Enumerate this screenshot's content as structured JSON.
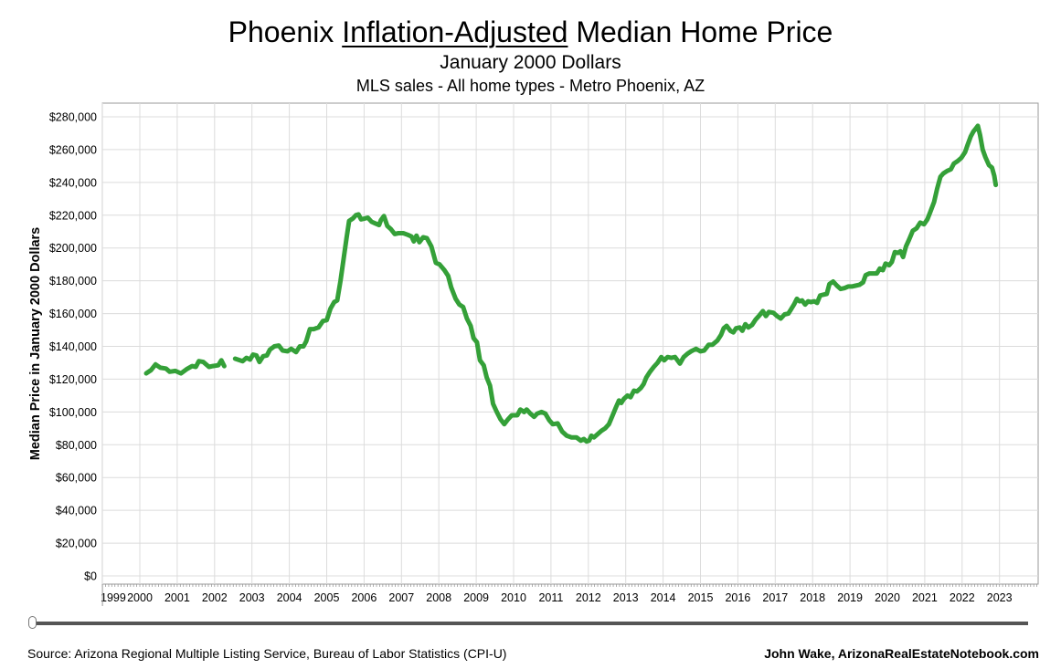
{
  "title_prefix": "Phoenix ",
  "title_underlined": "Inflation-Adjusted",
  "title_suffix": " Median Home Price",
  "subtitle": "January 2000 Dollars",
  "subtitle2": "MLS sales - All home types - Metro Phoenix, AZ",
  "footer": {
    "source": "Source: Arizona Regional Multiple Listing Service, Bureau of Labor Statistics (CPI-U)",
    "credit": "John Wake, ArizonaRealEstateNotebook.com"
  },
  "colors": {
    "line": "#34a038",
    "grid": "#dcdcdc",
    "axis": "#999999"
  },
  "chart_data": {
    "type": "line",
    "title": "Phoenix Inflation-Adjusted Median Home Price",
    "ylabel": "Median Price in January 2000 Dollars",
    "xlabel": "",
    "xlim": [
      1999,
      2024
    ],
    "ylim": [
      0,
      280000
    ],
    "grid": true,
    "x_ticks": [
      "1999",
      "2000",
      "2001",
      "2002",
      "2003",
      "2004",
      "2005",
      "2006",
      "2007",
      "2008",
      "2009",
      "2010",
      "2011",
      "2012",
      "2013",
      "2014",
      "2015",
      "2016",
      "2017",
      "2018",
      "2019",
      "2020",
      "2021",
      "2022",
      "2023"
    ],
    "y_ticks": [
      "$0",
      "$20,000",
      "$40,000",
      "$60,000",
      "$80,000",
      "$100,000",
      "$120,000",
      "$140,000",
      "$160,000",
      "$180,000",
      "$200,000",
      "$220,000",
      "$240,000",
      "$260,000",
      "$280,000"
    ],
    "series": [
      {
        "segments": [
          [
            [
              2000.17,
              123500
            ],
            [
              2000.3,
              125500
            ],
            [
              2000.42,
              129000
            ],
            [
              2000.55,
              127000
            ],
            [
              2000.7,
              126500
            ],
            [
              2000.8,
              124500
            ],
            [
              2000.95,
              125000
            ],
            [
              2001.1,
              123500
            ],
            [
              2001.25,
              126000
            ],
            [
              2001.4,
              128000
            ],
            [
              2001.5,
              127500
            ],
            [
              2001.58,
              131000
            ],
            [
              2001.7,
              130500
            ],
            [
              2001.85,
              127500
            ],
            [
              2001.95,
              128000
            ],
            [
              2002.1,
              128500
            ],
            [
              2002.18,
              131500
            ],
            [
              2002.26,
              128000
            ]
          ],
          [
            [
              2002.55,
              132500
            ],
            [
              2002.75,
              131000
            ],
            [
              2002.85,
              133000
            ],
            [
              2002.95,
              132000
            ],
            [
              2003.03,
              135000
            ],
            [
              2003.12,
              134500
            ],
            [
              2003.2,
              130500
            ],
            [
              2003.3,
              134000
            ],
            [
              2003.4,
              134500
            ],
            [
              2003.48,
              138000
            ],
            [
              2003.6,
              140000
            ],
            [
              2003.72,
              140500
            ],
            [
              2003.82,
              137500
            ],
            [
              2003.95,
              137000
            ],
            [
              2004.05,
              138500
            ],
            [
              2004.18,
              136500
            ],
            [
              2004.28,
              140000
            ],
            [
              2004.38,
              140000
            ],
            [
              2004.45,
              143000
            ],
            [
              2004.55,
              150500
            ],
            [
              2004.65,
              150500
            ],
            [
              2004.78,
              151500
            ],
            [
              2004.9,
              155500
            ],
            [
              2005.0,
              156000
            ],
            [
              2005.1,
              163000
            ],
            [
              2005.2,
              167000
            ],
            [
              2005.28,
              168000
            ],
            [
              2005.37,
              180000
            ],
            [
              2005.45,
              193000
            ],
            [
              2005.53,
              206000
            ],
            [
              2005.6,
              216500
            ],
            [
              2005.7,
              218000
            ],
            [
              2005.78,
              220000
            ],
            [
              2005.85,
              220500
            ],
            [
              2005.92,
              217500
            ],
            [
              2006.02,
              218000
            ],
            [
              2006.1,
              218500
            ],
            [
              2006.2,
              216000
            ],
            [
              2006.3,
              215000
            ],
            [
              2006.4,
              214000
            ],
            [
              2006.45,
              217000
            ],
            [
              2006.53,
              219500
            ],
            [
              2006.62,
              213500
            ],
            [
              2006.72,
              211500
            ],
            [
              2006.82,
              208500
            ],
            [
              2006.92,
              209000
            ],
            [
              2007.05,
              209000
            ],
            [
              2007.17,
              208000
            ],
            [
              2007.27,
              207000
            ],
            [
              2007.33,
              204000
            ],
            [
              2007.4,
              207500
            ],
            [
              2007.48,
              203500
            ],
            [
              2007.58,
              206500
            ],
            [
              2007.68,
              206000
            ],
            [
              2007.8,
              201000
            ],
            [
              2007.92,
              191000
            ],
            [
              2008.02,
              190000
            ],
            [
              2008.15,
              186500
            ],
            [
              2008.25,
              183000
            ],
            [
              2008.33,
              176000
            ],
            [
              2008.45,
              169000
            ],
            [
              2008.55,
              165500
            ],
            [
              2008.65,
              164000
            ],
            [
              2008.75,
              157000
            ],
            [
              2008.85,
              152500
            ],
            [
              2008.93,
              145000
            ],
            [
              2009.02,
              142500
            ],
            [
              2009.1,
              131500
            ],
            [
              2009.2,
              128500
            ],
            [
              2009.28,
              121000
            ],
            [
              2009.37,
              116000
            ],
            [
              2009.45,
              105000
            ],
            [
              2009.55,
              100000
            ],
            [
              2009.65,
              95500
            ],
            [
              2009.75,
              92500
            ],
            [
              2009.85,
              95500
            ],
            [
              2009.95,
              98000
            ],
            [
              2010.1,
              98000
            ],
            [
              2010.18,
              101500
            ],
            [
              2010.28,
              100000
            ],
            [
              2010.35,
              101500
            ],
            [
              2010.45,
              99000
            ],
            [
              2010.55,
              97000
            ],
            [
              2010.63,
              99000
            ],
            [
              2010.75,
              100000
            ],
            [
              2010.85,
              99000
            ],
            [
              2010.95,
              95000
            ],
            [
              2011.05,
              92500
            ],
            [
              2011.18,
              93000
            ],
            [
              2011.3,
              88000
            ],
            [
              2011.42,
              85500
            ],
            [
              2011.55,
              84500
            ],
            [
              2011.68,
              84500
            ],
            [
              2011.8,
              82500
            ],
            [
              2011.88,
              83500
            ],
            [
              2011.95,
              82000
            ],
            [
              2012.02,
              82500
            ],
            [
              2012.08,
              85500
            ],
            [
              2012.15,
              84500
            ],
            [
              2012.25,
              86500
            ],
            [
              2012.35,
              88500
            ],
            [
              2012.45,
              90000
            ],
            [
              2012.55,
              92500
            ],
            [
              2012.65,
              98000
            ],
            [
              2012.75,
              103500
            ],
            [
              2012.82,
              107000
            ],
            [
              2012.88,
              105500
            ],
            [
              2012.95,
              108000
            ],
            [
              2013.05,
              110000
            ],
            [
              2013.13,
              109000
            ],
            [
              2013.22,
              113000
            ],
            [
              2013.3,
              112500
            ],
            [
              2013.4,
              114500
            ],
            [
              2013.48,
              117000
            ],
            [
              2013.55,
              121000
            ],
            [
              2013.65,
              124500
            ],
            [
              2013.75,
              127500
            ],
            [
              2013.85,
              130000
            ],
            [
              2013.95,
              133500
            ],
            [
              2014.03,
              131500
            ],
            [
              2014.12,
              133500
            ],
            [
              2014.22,
              133000
            ],
            [
              2014.32,
              133500
            ],
            [
              2014.45,
              129500
            ],
            [
              2014.55,
              133500
            ],
            [
              2014.65,
              135500
            ],
            [
              2014.75,
              137000
            ],
            [
              2014.88,
              138500
            ],
            [
              2015.0,
              137000
            ],
            [
              2015.1,
              137500
            ],
            [
              2015.22,
              141000
            ],
            [
              2015.32,
              141000
            ],
            [
              2015.45,
              143500
            ],
            [
              2015.55,
              147000
            ],
            [
              2015.62,
              151000
            ],
            [
              2015.7,
              152500
            ],
            [
              2015.8,
              149500
            ],
            [
              2015.88,
              148500
            ],
            [
              2015.95,
              151000
            ],
            [
              2016.05,
              151500
            ],
            [
              2016.12,
              149500
            ],
            [
              2016.2,
              153500
            ],
            [
              2016.28,
              151500
            ],
            [
              2016.38,
              153000
            ],
            [
              2016.48,
              156500
            ],
            [
              2016.58,
              159000
            ],
            [
              2016.67,
              161500
            ],
            [
              2016.75,
              158500
            ],
            [
              2016.83,
              161000
            ],
            [
              2016.95,
              160500
            ],
            [
              2017.05,
              158500
            ],
            [
              2017.15,
              157000
            ],
            [
              2017.25,
              159500
            ],
            [
              2017.35,
              160000
            ],
            [
              2017.42,
              162500
            ],
            [
              2017.5,
              165500
            ],
            [
              2017.58,
              169000
            ],
            [
              2017.65,
              167500
            ],
            [
              2017.72,
              168000
            ],
            [
              2017.8,
              165500
            ],
            [
              2017.88,
              167500
            ],
            [
              2017.95,
              167000
            ],
            [
              2018.05,
              167500
            ],
            [
              2018.12,
              166500
            ],
            [
              2018.2,
              171000
            ],
            [
              2018.28,
              171500
            ],
            [
              2018.38,
              172000
            ],
            [
              2018.45,
              178000
            ],
            [
              2018.55,
              179500
            ],
            [
              2018.65,
              177000
            ],
            [
              2018.75,
              175000
            ],
            [
              2018.85,
              175500
            ],
            [
              2018.95,
              176500
            ],
            [
              2019.05,
              176500
            ],
            [
              2019.15,
              177000
            ],
            [
              2019.25,
              177500
            ],
            [
              2019.35,
              179000
            ],
            [
              2019.42,
              183500
            ],
            [
              2019.52,
              184500
            ],
            [
              2019.62,
              184500
            ],
            [
              2019.72,
              184500
            ],
            [
              2019.8,
              187500
            ],
            [
              2019.88,
              186500
            ],
            [
              2019.95,
              190500
            ],
            [
              2020.05,
              189500
            ],
            [
              2020.12,
              191500
            ],
            [
              2020.2,
              197500
            ],
            [
              2020.28,
              197000
            ],
            [
              2020.35,
              198000
            ],
            [
              2020.42,
              194500
            ],
            [
              2020.5,
              201000
            ],
            [
              2020.58,
              205000
            ],
            [
              2020.68,
              210500
            ],
            [
              2020.78,
              212000
            ],
            [
              2020.88,
              215500
            ],
            [
              2020.98,
              214500
            ],
            [
              2021.07,
              217500
            ],
            [
              2021.15,
              222000
            ],
            [
              2021.25,
              228000
            ],
            [
              2021.33,
              236000
            ],
            [
              2021.42,
              243500
            ],
            [
              2021.5,
              245500
            ],
            [
              2021.6,
              247000
            ],
            [
              2021.7,
              248000
            ],
            [
              2021.78,
              251500
            ],
            [
              2021.88,
              253000
            ],
            [
              2021.98,
              255000
            ],
            [
              2022.08,
              258500
            ],
            [
              2022.15,
              263000
            ],
            [
              2022.23,
              268000
            ],
            [
              2022.3,
              271000
            ],
            [
              2022.37,
              273000
            ],
            [
              2022.42,
              274500
            ],
            [
              2022.48,
              269000
            ],
            [
              2022.55,
              260000
            ],
            [
              2022.62,
              255500
            ],
            [
              2022.72,
              250500
            ],
            [
              2022.8,
              249000
            ],
            [
              2022.86,
              244000
            ],
            [
              2022.9,
              238500
            ]
          ]
        ]
      }
    ]
  }
}
